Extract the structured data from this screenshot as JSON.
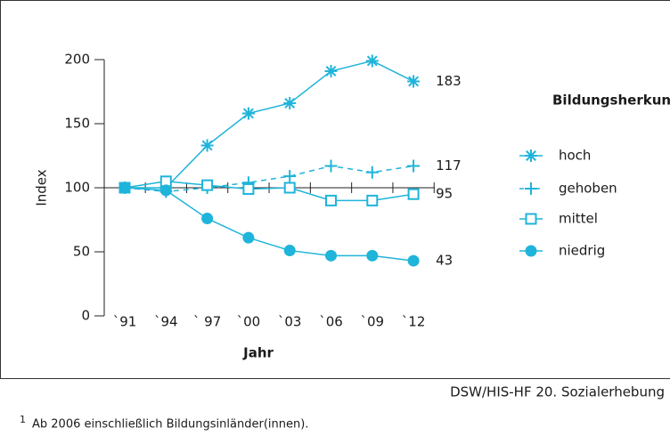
{
  "chart_data": {
    "type": "line",
    "axis_title_y": "Index",
    "axis_title_x": "Jahr",
    "categories": [
      "`91",
      "`94",
      "` 97",
      "`00",
      "`03",
      "`06",
      "`09",
      "`12"
    ],
    "ylim": [
      0,
      200
    ],
    "yticks": [
      0,
      50,
      100,
      150,
      200
    ],
    "axis_crossing": 100,
    "legend_title": "Bildungsherkunft",
    "legend_position": "right",
    "series": [
      {
        "name": "hoch",
        "color": "#1fb4da",
        "marker": "asterisk",
        "dash": false,
        "values": [
          100,
          100,
          133,
          158,
          166,
          191,
          199,
          183
        ]
      },
      {
        "name": "gehoben",
        "color": "#1fb4da",
        "marker": "plus",
        "dash": true,
        "values": [
          100,
          97,
          100,
          104,
          109,
          117,
          112,
          117
        ]
      },
      {
        "name": "mittel",
        "color": "#1fb4da",
        "marker": "square",
        "dash": false,
        "values": [
          100,
          105,
          102,
          99,
          100,
          90,
          90,
          95
        ]
      },
      {
        "name": "niedrig",
        "color": "#1fb4da",
        "marker": "circle",
        "dash": false,
        "values": [
          100,
          98,
          76,
          61,
          51,
          47,
          47,
          43
        ]
      }
    ]
  },
  "source": "DSW/HIS-HF 20. Sozialerhebung",
  "footnote": {
    "marker": "1",
    "text": "Ab 2006 einschließlich Bildungsinländer(innen)."
  }
}
